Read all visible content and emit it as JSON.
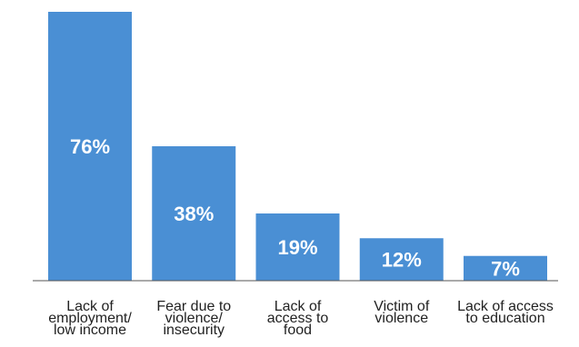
{
  "chart_data": {
    "type": "bar",
    "title": "",
    "xlabel": "",
    "ylabel": "",
    "categories": [
      [
        "Lack of",
        "employment/",
        "low income"
      ],
      [
        "Fear due to",
        "violence/",
        "insecurity"
      ],
      [
        "Lack of",
        "access to",
        "food"
      ],
      [
        "Victim of",
        "violence"
      ],
      [
        "Lack of access",
        "to education"
      ]
    ],
    "values": [
      76,
      38,
      19,
      12,
      7
    ],
    "value_labels": [
      "76%",
      "38%",
      "19%",
      "12%",
      "7%"
    ],
    "unit": "%",
    "ylim": [
      0,
      76
    ],
    "grid": false,
    "legend": "none",
    "bar_color": "#4a8fd4",
    "label_color": "#ffffff"
  }
}
